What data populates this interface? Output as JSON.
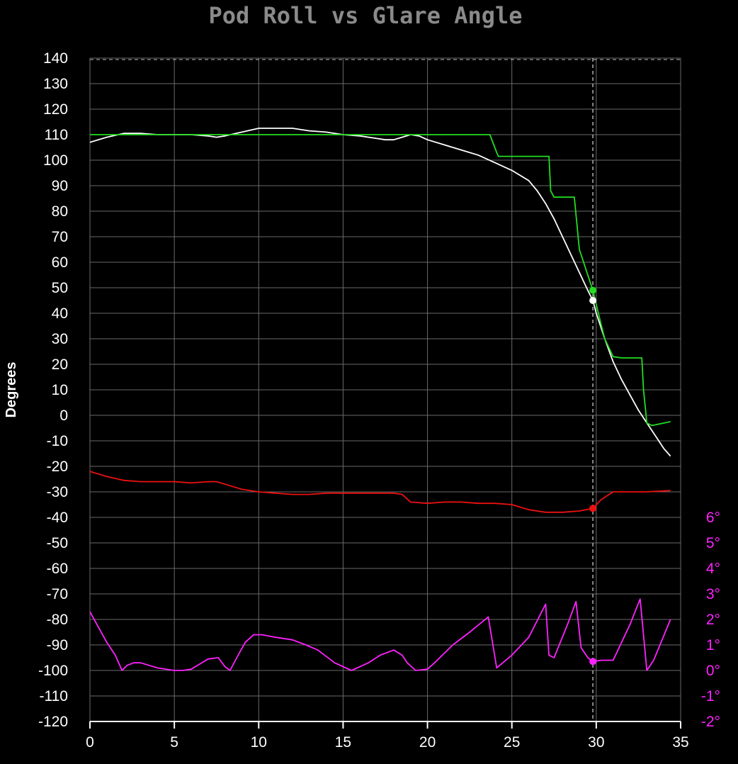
{
  "chart_data": {
    "type": "line",
    "title": "Pod Roll vs Glare Angle",
    "xlabel": "",
    "ylabel": "Degrees",
    "xlim": [
      0,
      35
    ],
    "ylim": [
      -120,
      140
    ],
    "x_ticks": [
      0,
      5,
      10,
      15,
      20,
      25,
      30,
      35
    ],
    "y_ticks": [
      140,
      130,
      120,
      110,
      100,
      90,
      80,
      70,
      60,
      50,
      40,
      30,
      20,
      10,
      0,
      -10,
      -20,
      -30,
      -40,
      -50,
      -60,
      -70,
      -80,
      -90,
      -100,
      -110,
      -120
    ],
    "right_axis": {
      "tick_labels": [
        "6°",
        "5°",
        "4°",
        "3°",
        "2°",
        "1°",
        "0°",
        "-1°",
        "-2°"
      ],
      "tick_values": [
        6,
        5,
        4,
        3,
        2,
        1,
        0,
        -1,
        -2
      ],
      "ylim": [
        -2,
        6
      ],
      "y_at_min_left": -120,
      "y_at_max_left": -40,
      "color": "#ff22ff"
    },
    "grid": true,
    "cursor_x": 29.8,
    "series": [
      {
        "color": "#ffffff",
        "axis": "left",
        "x": [
          0,
          1,
          2,
          3,
          4,
          5,
          6,
          7,
          7.5,
          8,
          9,
          10,
          11,
          12,
          13,
          14,
          15,
          16,
          17,
          17.5,
          18,
          18.5,
          19,
          19.5,
          20,
          21,
          22,
          23,
          24,
          25,
          26,
          26.5,
          27,
          27.5,
          28,
          28.5,
          29,
          29.5,
          29.8,
          30,
          30.5,
          31,
          31.5,
          32,
          32.5,
          33,
          33.5,
          34,
          34.4
        ],
        "y": [
          107,
          109,
          110.5,
          110.5,
          110,
          110,
          110,
          109.5,
          109,
          109.5,
          111,
          112.5,
          112.5,
          112.5,
          111.5,
          111,
          110,
          109.5,
          108.5,
          108,
          108,
          109,
          110,
          109.5,
          108,
          106,
          104,
          102,
          99,
          96,
          92,
          88,
          83,
          77,
          70,
          63,
          56,
          49,
          45,
          40,
          30,
          21,
          14,
          8,
          2,
          -3,
          -8,
          -13,
          -16
        ]
      },
      {
        "color": "#22dd22",
        "axis": "left",
        "x": [
          0,
          5,
          10,
          15,
          20,
          23.7,
          24.1,
          24.2,
          27.2,
          27.3,
          27.5,
          28.7,
          29,
          29.8,
          30.2,
          30.5,
          31,
          31.5,
          32.7,
          32.8,
          33,
          33.3,
          34.4
        ],
        "y": [
          110,
          110,
          110,
          110,
          110,
          110,
          103,
          101.5,
          101.5,
          88,
          85.5,
          85.5,
          65,
          49,
          38,
          30,
          23,
          22.5,
          22.5,
          10,
          -3,
          -4,
          -2.5
        ]
      },
      {
        "color": "#ee1111",
        "axis": "left",
        "x": [
          0,
          1,
          2,
          3,
          4,
          5,
          6,
          7,
          7.5,
          8,
          9,
          10,
          11,
          12,
          13,
          14,
          15,
          16,
          17,
          18,
          18.5,
          19,
          20,
          21,
          22,
          23,
          24,
          25,
          26,
          27,
          28,
          29,
          29.8,
          30.3,
          31,
          32,
          33,
          34.4
        ],
        "y": [
          -22,
          -24,
          -25.5,
          -26,
          -26,
          -26,
          -26.5,
          -26,
          -26,
          -27,
          -29,
          -30,
          -30.5,
          -31,
          -31,
          -30.5,
          -30.5,
          -30.5,
          -30.5,
          -30.5,
          -31,
          -34,
          -34.5,
          -34,
          -34,
          -34.5,
          -34.5,
          -35,
          -37,
          -38,
          -38,
          -37.5,
          -36.5,
          -33,
          -30,
          -30,
          -30,
          -29.5
        ]
      },
      {
        "color": "#ff22ff",
        "axis": "right",
        "x": [
          0,
          0.5,
          1,
          1.5,
          1.9,
          2.2,
          2.6,
          3,
          4,
          5,
          5.5,
          6,
          6.5,
          7,
          7.6,
          8,
          8.3,
          8.7,
          9.2,
          9.7,
          10.2,
          11,
          12,
          12.8,
          13.5,
          14.5,
          15.5,
          16.5,
          17.2,
          18,
          18.5,
          18.8,
          19.3,
          20,
          20.5,
          21.5,
          22.5,
          23.6,
          24.1,
          25,
          26,
          27,
          27.2,
          27.5,
          28.3,
          28.8,
          29.1,
          29.5,
          29.8,
          30.3,
          31,
          32,
          32.6,
          33,
          33.4,
          34.4
        ],
        "y": [
          2.3,
          1.7,
          1.1,
          0.6,
          0,
          0.2,
          0.3,
          0.3,
          0.1,
          0,
          0,
          0.05,
          0.25,
          0.45,
          0.5,
          0.15,
          0,
          0.5,
          1.1,
          1.4,
          1.4,
          1.3,
          1.2,
          1.0,
          0.8,
          0.3,
          0,
          0.3,
          0.6,
          0.8,
          0.6,
          0.3,
          0,
          0.05,
          0.35,
          1.0,
          1.5,
          2.1,
          0.1,
          0.6,
          1.3,
          2.6,
          0.6,
          0.5,
          1.8,
          2.7,
          0.9,
          0.5,
          0.35,
          0.4,
          0.4,
          1.8,
          2.8,
          0,
          0.4,
          2.0
        ]
      }
    ]
  }
}
